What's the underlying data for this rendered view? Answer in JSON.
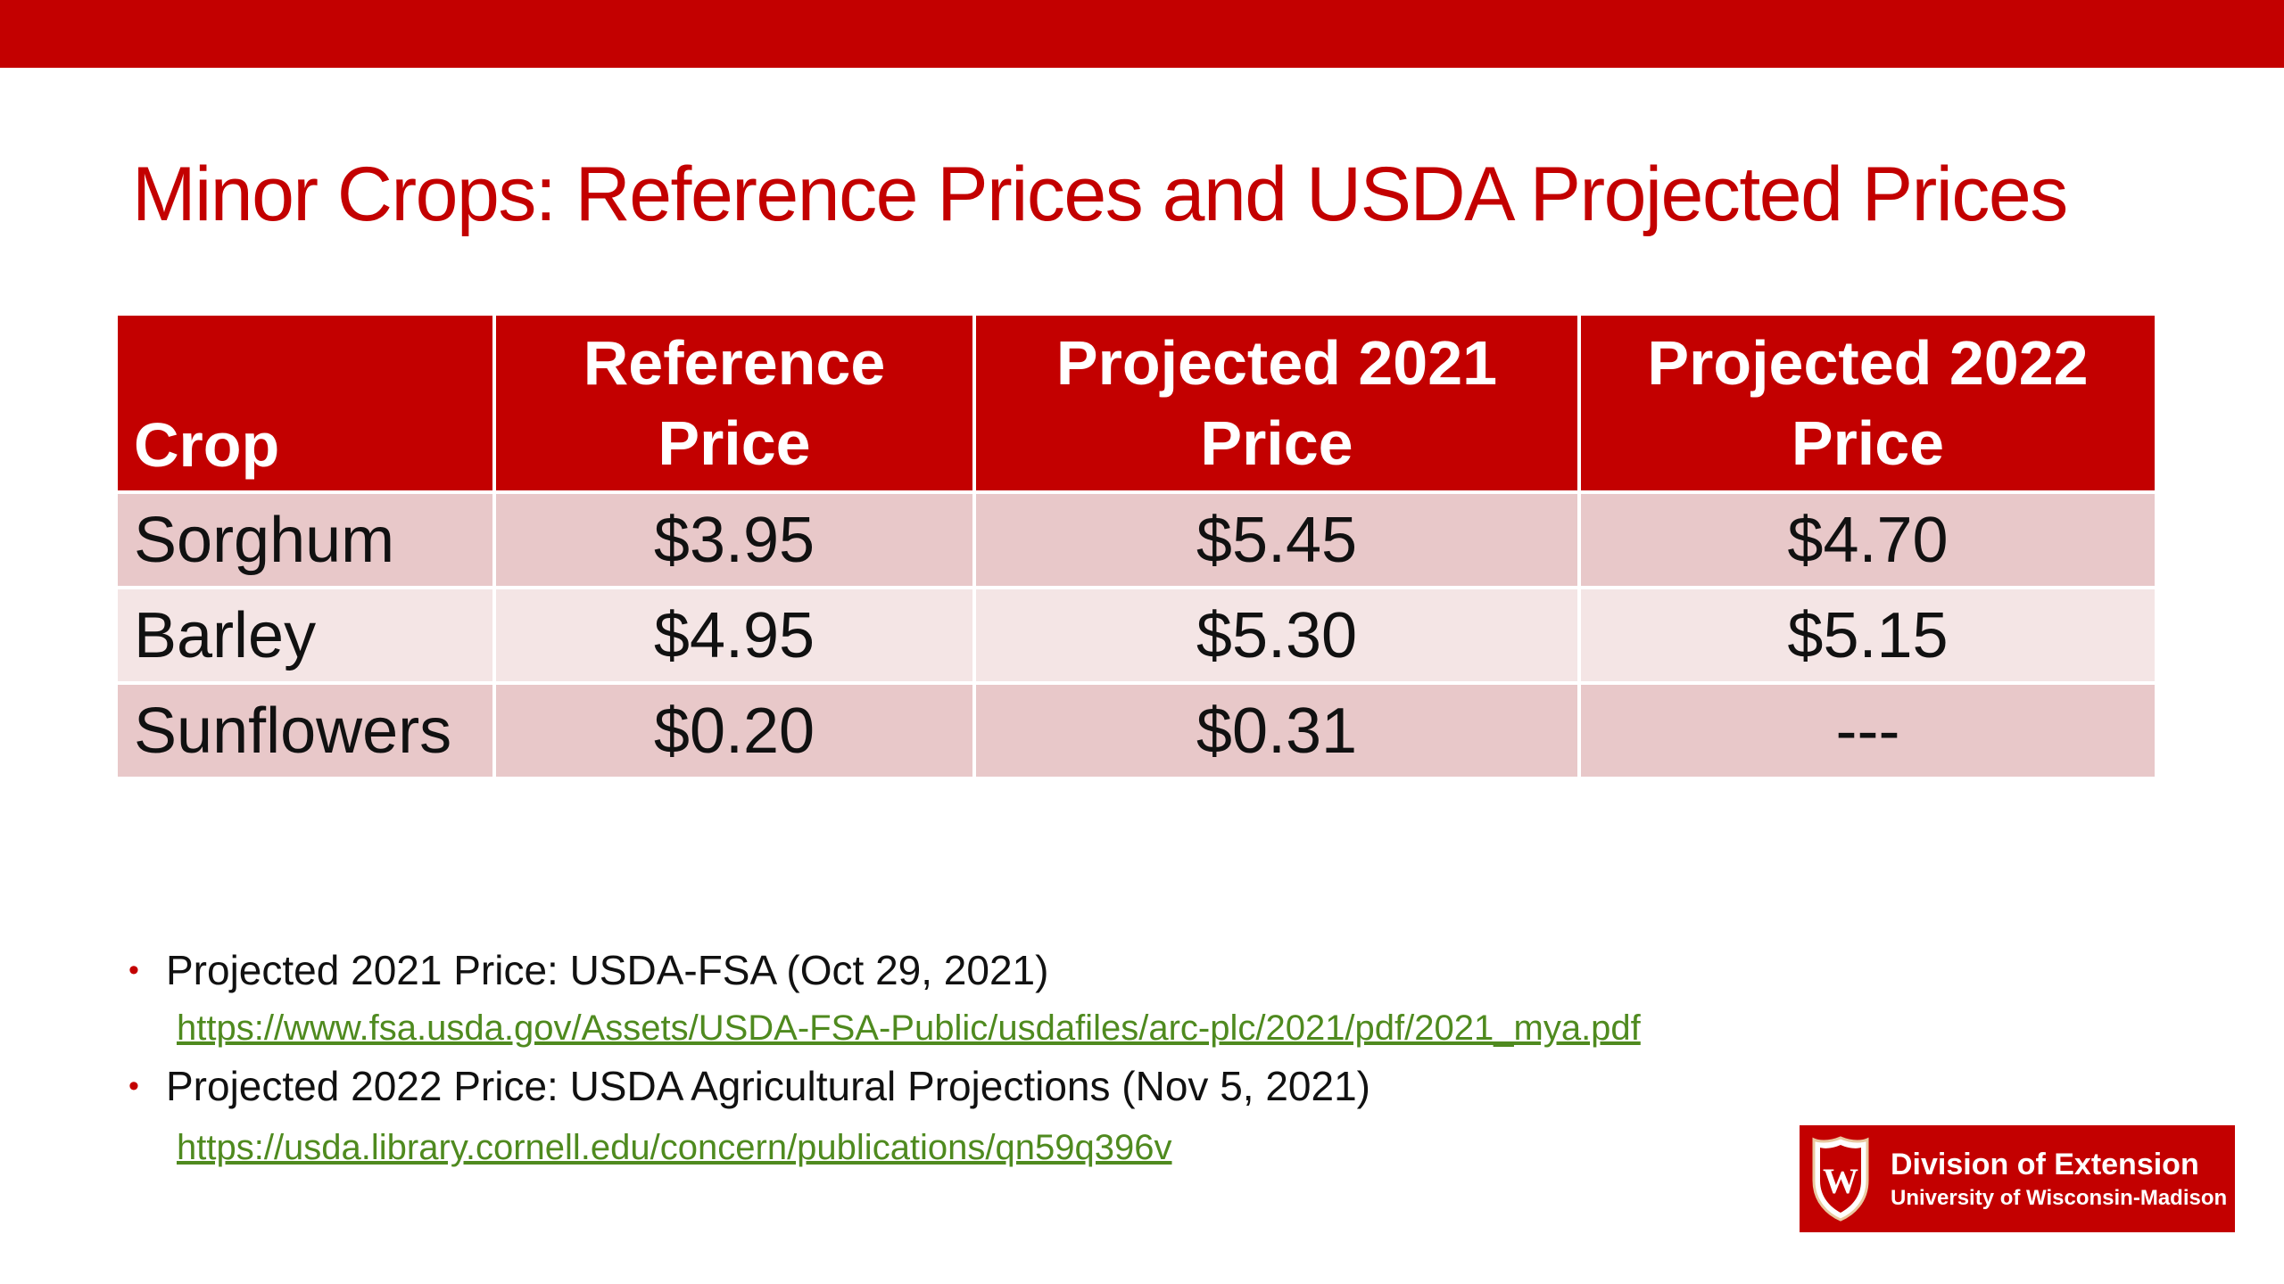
{
  "slide": {
    "title": "Minor Crops: Reference Prices and USDA Projected Prices",
    "accent_color": "#c30000",
    "link_color": "#4f8a1f"
  },
  "table": {
    "headers": {
      "crop": "Crop",
      "reference_line1": "Reference",
      "reference_line2": "Price",
      "proj2021_line1": "Projected 2021",
      "proj2021_line2": "Price",
      "proj2022_line1": "Projected 2022",
      "proj2022_line2": "Price"
    },
    "rows": [
      {
        "crop": "Sorghum",
        "reference": "$3.95",
        "proj2021": "$5.45",
        "proj2022": "$4.70"
      },
      {
        "crop": "Barley",
        "reference": "$4.95",
        "proj2021": "$5.30",
        "proj2022": "$5.15"
      },
      {
        "crop": "Sunflowers",
        "reference": "$0.20",
        "proj2021": "$0.31",
        "proj2022": "---"
      }
    ]
  },
  "notes": [
    {
      "text": "Projected 2021 Price: USDA-FSA (Oct 29, 2021)",
      "link": "https://www.fsa.usda.gov/Assets/USDA-FSA-Public/usdafiles/arc-plc/2021/pdf/2021_mya.pdf"
    },
    {
      "text": "Projected 2022 Price: USDA Agricultural Projections (Nov 5, 2021)",
      "link": "https://usda.library.cornell.edu/concern/publications/qn59q396v"
    }
  ],
  "logo": {
    "crest_letter": "W",
    "line1": "Division of Extension",
    "line2": "University of Wisconsin-Madison"
  }
}
